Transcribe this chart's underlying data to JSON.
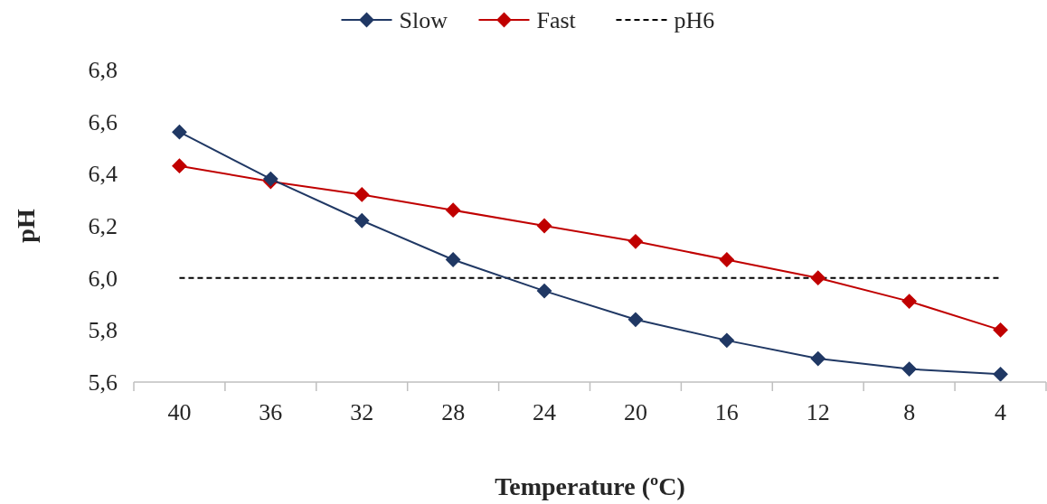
{
  "chart_data": {
    "type": "line",
    "xlabel": "Temperature (ºC)",
    "ylabel": "pH",
    "categories": [
      "40",
      "36",
      "32",
      "28",
      "24",
      "20",
      "16",
      "12",
      "8",
      "4"
    ],
    "series": [
      {
        "name": "Slow",
        "color": "#203864",
        "marker": "diamond",
        "values": [
          6.56,
          6.38,
          6.22,
          6.07,
          5.95,
          5.84,
          5.76,
          5.69,
          5.65,
          5.63
        ]
      },
      {
        "name": "Fast",
        "color": "#c00000",
        "marker": "diamond",
        "values": [
          6.43,
          6.37,
          6.32,
          6.26,
          6.2,
          6.14,
          6.07,
          6.0,
          5.91,
          5.8
        ]
      },
      {
        "name": "pH6",
        "color": "#000000",
        "marker": "none",
        "line_style": "dashed",
        "values": [
          6,
          6,
          6,
          6,
          6,
          6,
          6,
          6,
          6,
          6
        ]
      }
    ],
    "ylim": [
      5.6,
      6.8
    ],
    "yticks": [
      {
        "value": 5.6,
        "label": "5,6"
      },
      {
        "value": 5.8,
        "label": "5,8"
      },
      {
        "value": 6.0,
        "label": "6,0"
      },
      {
        "value": 6.2,
        "label": "6,2"
      },
      {
        "value": 6.4,
        "label": "6,4"
      },
      {
        "value": 6.6,
        "label": "6,6"
      },
      {
        "value": 6.8,
        "label": "6,8"
      }
    ],
    "grid": false,
    "legend": "top"
  }
}
